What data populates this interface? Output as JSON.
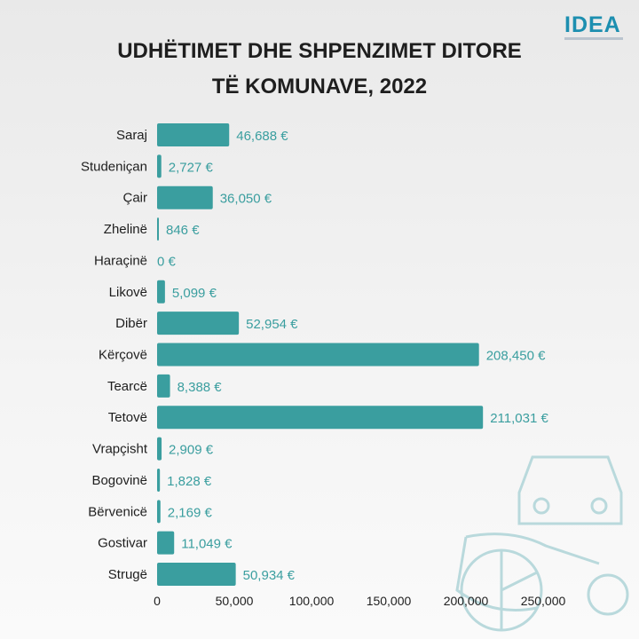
{
  "logo": "IDEA",
  "chart_data": {
    "type": "bar",
    "orientation": "horizontal",
    "title_lines": [
      "UDHËTIMET DHE SHPENZIMET DITORE",
      "TË KOMUNAVE, 2022"
    ],
    "categories": [
      "Saraj",
      "Studeniçan",
      "Çair",
      "Zhelinë",
      "Haraçinë",
      "Likovë",
      "Dibër",
      "Kërçovë",
      "Tearcë",
      "Tetovë",
      "Vrapçisht",
      "Bogovinë",
      "Bërvenicë",
      "Gostivar",
      "Strugë"
    ],
    "values": [
      46688,
      2727,
      36050,
      846,
      0,
      5099,
      52954,
      208450,
      8388,
      211031,
      2909,
      1828,
      2169,
      11049,
      50934
    ],
    "value_labels": [
      "46,688 €",
      "2,727 €",
      "36,050 €",
      "846 €",
      "0 €",
      "5,099 €",
      "52,954 €",
      "208,450 €",
      "8,388 €",
      "211,031 €",
      "2,909 €",
      "1,828 €",
      "2,169 €",
      "11,049 €",
      "50,934 €"
    ],
    "xticks": [
      0,
      50000,
      100000,
      150000,
      200000,
      250000
    ],
    "xtick_labels": [
      "0",
      "50,000",
      "100,000",
      "150,000",
      "200,000",
      "250,000"
    ],
    "xlim": [
      0,
      250000
    ],
    "bar_color": "#3a9e9f",
    "grid": false
  }
}
